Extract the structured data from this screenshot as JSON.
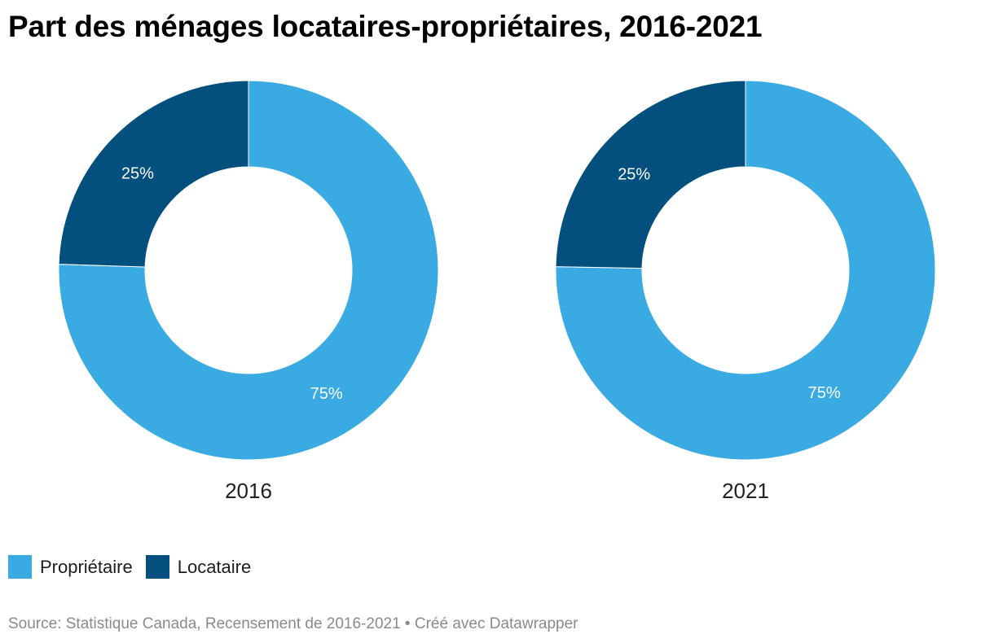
{
  "title": "Part des ménages locataires-propriétaires, 2016-2021",
  "colors": {
    "proprietaire": "#3aaae2",
    "locataire": "#03507f"
  },
  "legend": [
    {
      "label": "Propriétaire",
      "color": "#3aaae2"
    },
    {
      "label": "Locataire",
      "color": "#03507f"
    }
  ],
  "source": "Source: Statistique Canada, Recensement de 2016-2021 • Créé avec Datawrapper",
  "chart_data": [
    {
      "type": "pie",
      "name": "2016",
      "categories": [
        "Propriétaire",
        "Locataire"
      ],
      "values": [
        75.5,
        24.5
      ],
      "labels": [
        "75%",
        "25%"
      ]
    },
    {
      "type": "pie",
      "name": "2021",
      "categories": [
        "Propriétaire",
        "Locataire"
      ],
      "values": [
        75.3,
        24.7
      ],
      "labels": [
        "75%",
        "25%"
      ]
    }
  ]
}
